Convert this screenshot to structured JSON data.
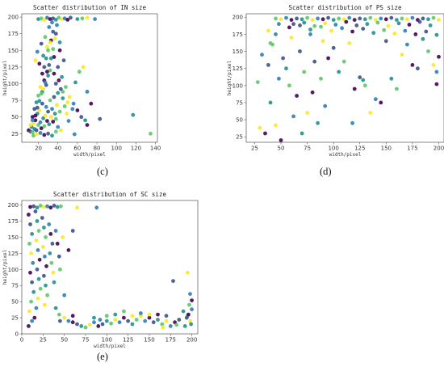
{
  "chart_data": [
    {
      "type": "scatter",
      "panel": "(c)",
      "title": "Scatter distribution of IN size",
      "xlabel": "width/pixel",
      "ylabel": "height/pixel",
      "xlim": [
        3,
        142
      ],
      "ylim": [
        12,
        205
      ],
      "xticks": [
        20,
        40,
        60,
        80,
        100,
        120,
        140
      ],
      "yticks": [
        25,
        50,
        75,
        100,
        125,
        150,
        175,
        200
      ],
      "grid": false,
      "points": [
        [
          10,
          30
        ],
        [
          12,
          28
        ],
        [
          13,
          35
        ],
        [
          14,
          27
        ],
        [
          15,
          40
        ],
        [
          16,
          32
        ],
        [
          17,
          45
        ],
        [
          18,
          30
        ],
        [
          19,
          55
        ],
        [
          20,
          38
        ],
        [
          21,
          60
        ],
        [
          22,
          42
        ],
        [
          23,
          33
        ],
        [
          24,
          70
        ],
        [
          25,
          48
        ],
        [
          26,
          36
        ],
        [
          27,
          52
        ],
        [
          28,
          65
        ],
        [
          29,
          44
        ],
        [
          30,
          58
        ],
        [
          31,
          39
        ],
        [
          32,
          75
        ],
        [
          33,
          50
        ],
        [
          34,
          62
        ],
        [
          35,
          43
        ],
        [
          36,
          80
        ],
        [
          37,
          55
        ],
        [
          38,
          47
        ],
        [
          39,
          68
        ],
        [
          40,
          35
        ],
        [
          14,
          50
        ],
        [
          16,
          62
        ],
        [
          18,
          72
        ],
        [
          20,
          82
        ],
        [
          22,
          95
        ],
        [
          24,
          88
        ],
        [
          26,
          105
        ],
        [
          28,
          98
        ],
        [
          30,
          112
        ],
        [
          32,
          120
        ],
        [
          17,
          135
        ],
        [
          19,
          148
        ],
        [
          21,
          130
        ],
        [
          23,
          160
        ],
        [
          25,
          142
        ],
        [
          27,
          170
        ],
        [
          29,
          155
        ],
        [
          31,
          185
        ],
        [
          33,
          165
        ],
        [
          35,
          178
        ],
        [
          20,
          197
        ],
        [
          23,
          198
        ],
        [
          26,
          196
        ],
        [
          29,
          199
        ],
        [
          32,
          197
        ],
        [
          35,
          198
        ],
        [
          38,
          196
        ],
        [
          41,
          199
        ],
        [
          44,
          197
        ],
        [
          47,
          198
        ],
        [
          50,
          196
        ],
        [
          53,
          199
        ],
        [
          60,
          197
        ],
        [
          65,
          198
        ],
        [
          70,
          199
        ],
        [
          78,
          197
        ],
        [
          36,
          140
        ],
        [
          40,
          125
        ],
        [
          44,
          110
        ],
        [
          48,
          95
        ],
        [
          52,
          80
        ],
        [
          56,
          70
        ],
        [
          60,
          60
        ],
        [
          64,
          50
        ],
        [
          68,
          45
        ],
        [
          45,
          88
        ],
        [
          50,
          72
        ],
        [
          55,
          62
        ],
        [
          42,
          150
        ],
        [
          46,
          135
        ],
        [
          58,
          102
        ],
        [
          62,
          118
        ],
        [
          66,
          125
        ],
        [
          70,
          88
        ],
        [
          74,
          70
        ],
        [
          38,
          175
        ],
        [
          42,
          162
        ],
        [
          15,
          22
        ],
        [
          18,
          24
        ],
        [
          22,
          26
        ],
        [
          26,
          23
        ],
        [
          30,
          25
        ],
        [
          34,
          22
        ],
        [
          38,
          28
        ],
        [
          43,
          30
        ],
        [
          57,
          24
        ],
        [
          70,
          38
        ],
        [
          83,
          47
        ],
        [
          117,
          53
        ],
        [
          135,
          25
        ],
        [
          12,
          38
        ],
        [
          14,
          45
        ],
        [
          17,
          52
        ],
        [
          19,
          64
        ],
        [
          21,
          74
        ],
        [
          23,
          85
        ],
        [
          25,
          92
        ],
        [
          27,
          102
        ],
        [
          29,
          118
        ],
        [
          31,
          128
        ],
        [
          33,
          138
        ],
        [
          35,
          152
        ],
        [
          37,
          168
        ],
        [
          39,
          188
        ],
        [
          41,
          105
        ],
        [
          43,
          92
        ],
        [
          45,
          78
        ],
        [
          47,
          66
        ],
        [
          49,
          55
        ],
        [
          51,
          44
        ],
        [
          24,
          115
        ],
        [
          26,
          125
        ],
        [
          28,
          138
        ],
        [
          30,
          150
        ],
        [
          32,
          162
        ],
        [
          34,
          192
        ],
        [
          36,
          115
        ],
        [
          38,
          100
        ],
        [
          40,
          86
        ],
        [
          42,
          58
        ]
      ]
    },
    {
      "type": "scatter",
      "panel": "(d)",
      "title": "Scatter distribution of PS size",
      "xlabel": "width/pixel",
      "ylabel": "height/pixel",
      "xlim": [
        17,
        205
      ],
      "ylim": [
        17,
        205
      ],
      "xticks": [
        25,
        50,
        75,
        100,
        125,
        150,
        175,
        200
      ],
      "yticks": [
        25,
        50,
        75,
        100,
        125,
        150,
        175,
        200
      ],
      "grid": false,
      "points": [
        [
          45,
          198
        ],
        [
          50,
          197
        ],
        [
          55,
          199
        ],
        [
          60,
          196
        ],
        [
          65,
          198
        ],
        [
          70,
          197
        ],
        [
          75,
          199
        ],
        [
          80,
          196
        ],
        [
          85,
          198
        ],
        [
          90,
          197
        ],
        [
          95,
          199
        ],
        [
          100,
          196
        ],
        [
          105,
          198
        ],
        [
          110,
          197
        ],
        [
          115,
          199
        ],
        [
          120,
          196
        ],
        [
          125,
          198
        ],
        [
          130,
          197
        ],
        [
          135,
          199
        ],
        [
          140,
          196
        ],
        [
          145,
          198
        ],
        [
          150,
          197
        ],
        [
          155,
          199
        ],
        [
          160,
          196
        ],
        [
          165,
          198
        ],
        [
          170,
          197
        ],
        [
          175,
          199
        ],
        [
          180,
          196
        ],
        [
          185,
          198
        ],
        [
          190,
          197
        ],
        [
          195,
          199
        ],
        [
          200,
          196
        ],
        [
          48,
          190
        ],
        [
          58,
          185
        ],
        [
          68,
          188
        ],
        [
          78,
          182
        ],
        [
          88,
          186
        ],
        [
          98,
          180
        ],
        [
          108,
          184
        ],
        [
          118,
          179
        ],
        [
          128,
          183
        ],
        [
          138,
          177
        ],
        [
          148,
          181
        ],
        [
          158,
          176
        ],
        [
          168,
          180
        ],
        [
          178,
          175
        ],
        [
          188,
          179
        ],
        [
          198,
          174
        ],
        [
          28,
          105
        ],
        [
          30,
          38
        ],
        [
          32,
          145
        ],
        [
          35,
          30
        ],
        [
          38,
          130
        ],
        [
          40,
          75
        ],
        [
          42,
          160
        ],
        [
          45,
          42
        ],
        [
          48,
          110
        ],
        [
          50,
          20
        ],
        [
          52,
          140
        ],
        [
          55,
          125
        ],
        [
          58,
          100
        ],
        [
          60,
          170
        ],
        [
          62,
          55
        ],
        [
          65,
          85
        ],
        [
          68,
          150
        ],
        [
          70,
          30
        ],
        [
          72,
          120
        ],
        [
          75,
          60
        ],
        [
          78,
          175
        ],
        [
          80,
          90
        ],
        [
          82,
          135
        ],
        [
          85,
          45
        ],
        [
          88,
          110
        ],
        [
          90,
          165
        ],
        [
          92,
          70
        ],
        [
          95,
          140
        ],
        [
          100,
          155
        ],
        [
          105,
          120
        ],
        [
          110,
          135
        ],
        [
          115,
          162
        ],
        [
          118,
          45
        ],
        [
          120,
          95
        ],
        [
          125,
          112
        ],
        [
          128,
          108
        ],
        [
          130,
          100
        ],
        [
          135,
          60
        ],
        [
          140,
          80
        ],
        [
          145,
          75
        ],
        [
          150,
          165
        ],
        [
          155,
          110
        ],
        [
          160,
          95
        ],
        [
          165,
          145
        ],
        [
          170,
          160
        ],
        [
          175,
          130
        ],
        [
          180,
          125
        ],
        [
          185,
          168
        ],
        [
          190,
          150
        ],
        [
          195,
          130
        ],
        [
          198,
          120
        ],
        [
          200,
          142
        ],
        [
          62,
          190
        ],
        [
          72,
          192
        ],
        [
          82,
          187
        ],
        [
          92,
          191
        ],
        [
          102,
          189
        ],
        [
          112,
          193
        ],
        [
          122,
          188
        ],
        [
          132,
          190
        ],
        [
          142,
          192
        ],
        [
          152,
          187
        ],
        [
          162,
          191
        ],
        [
          172,
          189
        ],
        [
          182,
          193
        ],
        [
          192,
          188
        ],
        [
          40,
          162
        ],
        [
          38,
          180
        ],
        [
          45,
          175
        ],
        [
          198,
          102
        ]
      ]
    },
    {
      "type": "scatter",
      "panel": "(e)",
      "title": "Scatter distribution of SC size",
      "xlabel": "width/pixel",
      "ylabel": "height/pixel",
      "xlim": [
        0,
        207
      ],
      "ylim": [
        0,
        207
      ],
      "xticks": [
        0,
        25,
        50,
        75,
        100,
        125,
        150,
        175,
        200
      ],
      "yticks": [
        0,
        25,
        50,
        75,
        100,
        125,
        150,
        175,
        200
      ],
      "grid": false,
      "points": [
        [
          10,
          197
        ],
        [
          14,
          198
        ],
        [
          18,
          196
        ],
        [
          22,
          199
        ],
        [
          26,
          197
        ],
        [
          30,
          198
        ],
        [
          34,
          196
        ],
        [
          38,
          199
        ],
        [
          42,
          197
        ],
        [
          46,
          198
        ],
        [
          65,
          196
        ],
        [
          88,
          196
        ],
        [
          8,
          185
        ],
        [
          10,
          170
        ],
        [
          12,
          155
        ],
        [
          9,
          140
        ],
        [
          11,
          125
        ],
        [
          13,
          110
        ],
        [
          10,
          95
        ],
        [
          12,
          80
        ],
        [
          14,
          65
        ],
        [
          11,
          50
        ],
        [
          9,
          35
        ],
        [
          12,
          20
        ],
        [
          8,
          12
        ],
        [
          16,
          190
        ],
        [
          18,
          175
        ],
        [
          20,
          160
        ],
        [
          17,
          145
        ],
        [
          19,
          130
        ],
        [
          21,
          115
        ],
        [
          18,
          100
        ],
        [
          20,
          85
        ],
        [
          22,
          70
        ],
        [
          19,
          55
        ],
        [
          17,
          40
        ],
        [
          15,
          25
        ],
        [
          24,
          180
        ],
        [
          26,
          165
        ],
        [
          28,
          150
        ],
        [
          25,
          135
        ],
        [
          27,
          120
        ],
        [
          29,
          105
        ],
        [
          26,
          90
        ],
        [
          28,
          75
        ],
        [
          30,
          60
        ],
        [
          27,
          45
        ],
        [
          32,
          170
        ],
        [
          34,
          155
        ],
        [
          36,
          140
        ],
        [
          33,
          125
        ],
        [
          35,
          110
        ],
        [
          37,
          95
        ],
        [
          40,
          160
        ],
        [
          42,
          140
        ],
        [
          44,
          120
        ],
        [
          38,
          80
        ],
        [
          45,
          100
        ],
        [
          48,
          150
        ],
        [
          50,
          60
        ],
        [
          55,
          130
        ],
        [
          60,
          160
        ],
        [
          40,
          40
        ],
        [
          44,
          30
        ],
        [
          50,
          25
        ],
        [
          55,
          20
        ],
        [
          60,
          18
        ],
        [
          65,
          15
        ],
        [
          70,
          12
        ],
        [
          75,
          10
        ],
        [
          80,
          14
        ],
        [
          85,
          18
        ],
        [
          90,
          12
        ],
        [
          95,
          15
        ],
        [
          100,
          20
        ],
        [
          105,
          16
        ],
        [
          110,
          22
        ],
        [
          115,
          18
        ],
        [
          120,
          25
        ],
        [
          125,
          20
        ],
        [
          130,
          15
        ],
        [
          135,
          22
        ],
        [
          140,
          28
        ],
        [
          145,
          20
        ],
        [
          150,
          25
        ],
        [
          155,
          18
        ],
        [
          160,
          22
        ],
        [
          165,
          15
        ],
        [
          170,
          20
        ],
        [
          175,
          12
        ],
        [
          180,
          18
        ],
        [
          185,
          22
        ],
        [
          190,
          35
        ],
        [
          195,
          28
        ],
        [
          198,
          20
        ],
        [
          200,
          38
        ],
        [
          196,
          30
        ],
        [
          194,
          25
        ],
        [
          199,
          15
        ],
        [
          197,
          45
        ],
        [
          195,
          95
        ],
        [
          198,
          62
        ],
        [
          200,
          52
        ],
        [
          178,
          82
        ],
        [
          110,
          30
        ],
        [
          120,
          35
        ],
        [
          130,
          28
        ],
        [
          140,
          32
        ],
        [
          160,
          30
        ],
        [
          170,
          28
        ],
        [
          85,
          25
        ],
        [
          100,
          28
        ],
        [
          150,
          30
        ],
        [
          92,
          22
        ],
        [
          60,
          28
        ],
        [
          45,
          20
        ],
        [
          192,
          12
        ],
        [
          182,
          14
        ],
        [
          166,
          10
        ]
      ]
    }
  ],
  "captions": {
    "c": "(c)",
    "d": "(d)",
    "e": "(e)"
  },
  "palette": [
    "#440154",
    "#3b528b",
    "#21908d",
    "#5dc863",
    "#fde725",
    "#2c7fb8"
  ]
}
